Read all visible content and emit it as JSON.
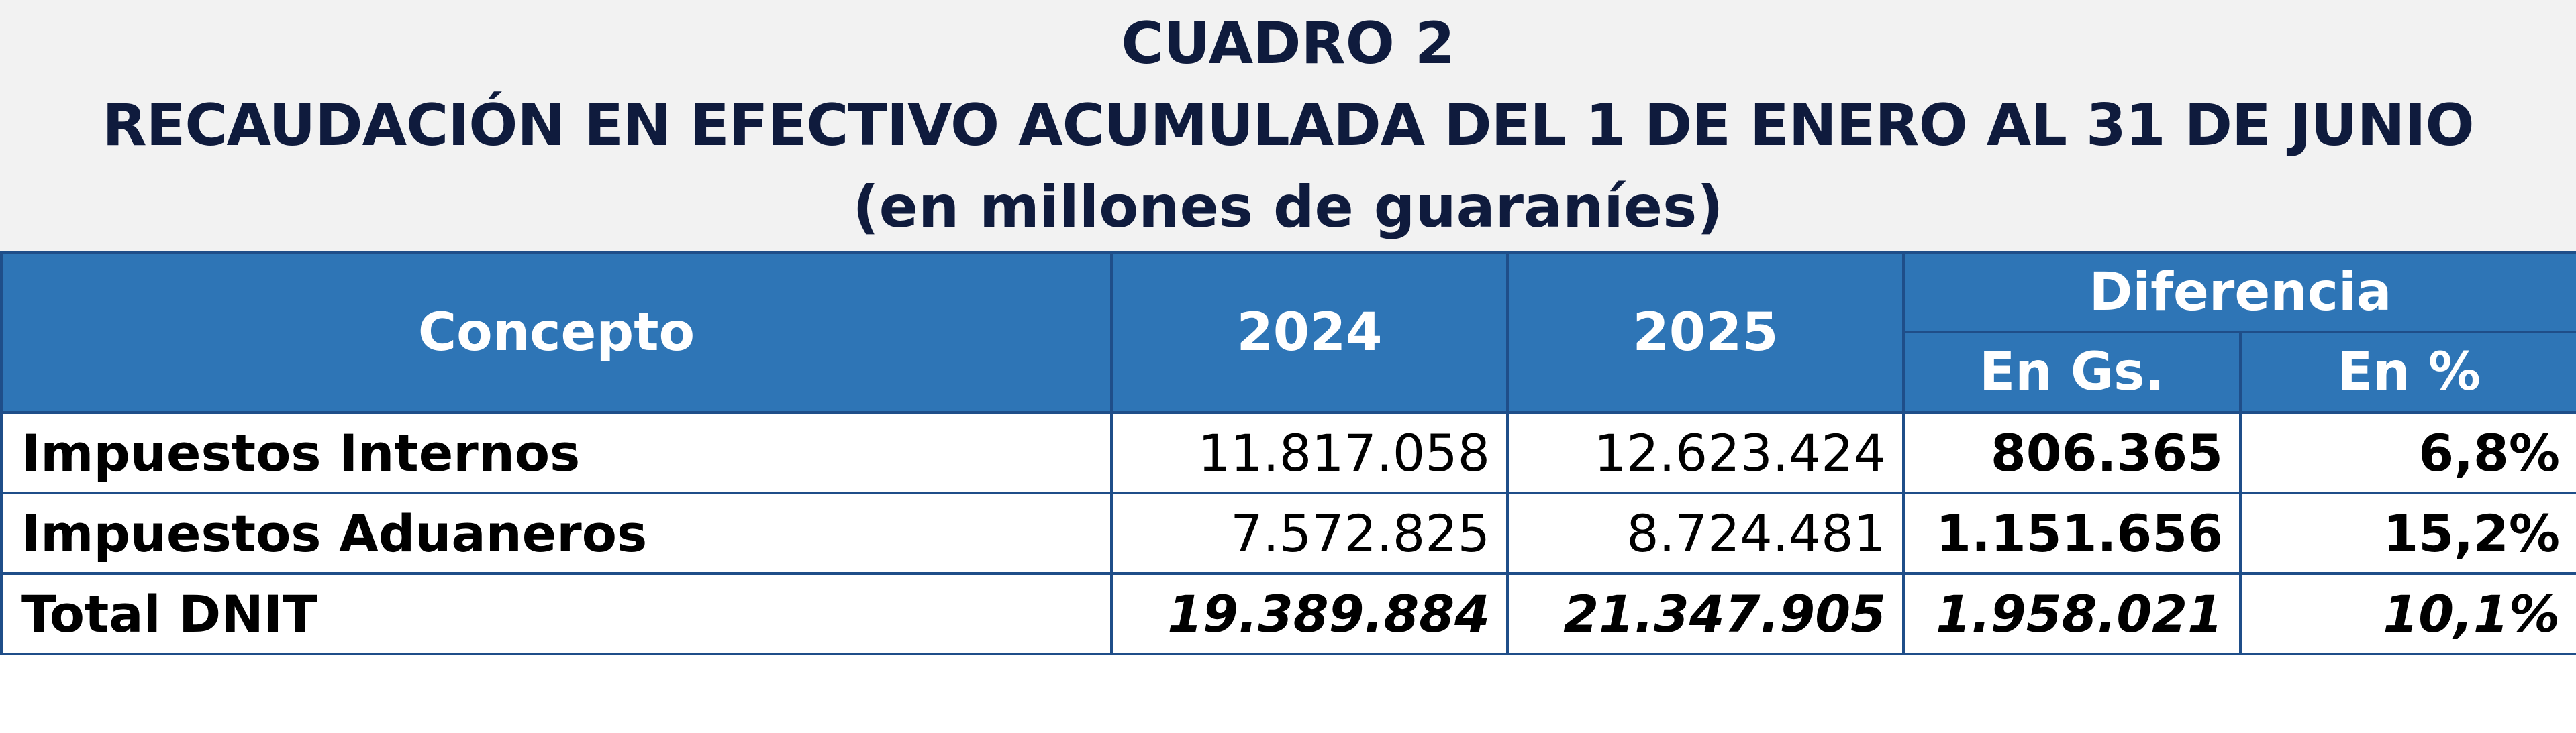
{
  "title": {
    "line1": "CUADRO 2",
    "line2": "RECAUDACIÓN EN EFECTIVO ACUMULADA DEL 1 DE ENERO AL 31 DE JUNIO",
    "line3": "(en millones de guaraníes)"
  },
  "table": {
    "headers": {
      "concepto": "Concepto",
      "year_2024": "2024",
      "year_2025": "2025",
      "diferencia": "Diferencia",
      "en_gs": "En Gs.",
      "en_pct": "En %"
    },
    "rows": [
      {
        "concepto": "Impuestos Internos",
        "y2024": "11.817.058",
        "y2025": "12.623.424",
        "dif_gs": "806.365",
        "dif_pct": "6,8%"
      },
      {
        "concepto": "Impuestos Aduaneros",
        "y2024": "7.572.825",
        "y2025": "8.724.481",
        "dif_gs": "1.151.656",
        "dif_pct": "15,2%"
      },
      {
        "concepto": "Total DNIT",
        "y2024": "19.389.884",
        "y2025": "21.347.905",
        "dif_gs": "1.958.021",
        "dif_pct": "10,1%"
      }
    ]
  },
  "colors": {
    "header_bg": "#2e75b6",
    "border": "#1f4e89",
    "title_text": "#0f1b3d",
    "band_bg": "#f2f2f2"
  }
}
